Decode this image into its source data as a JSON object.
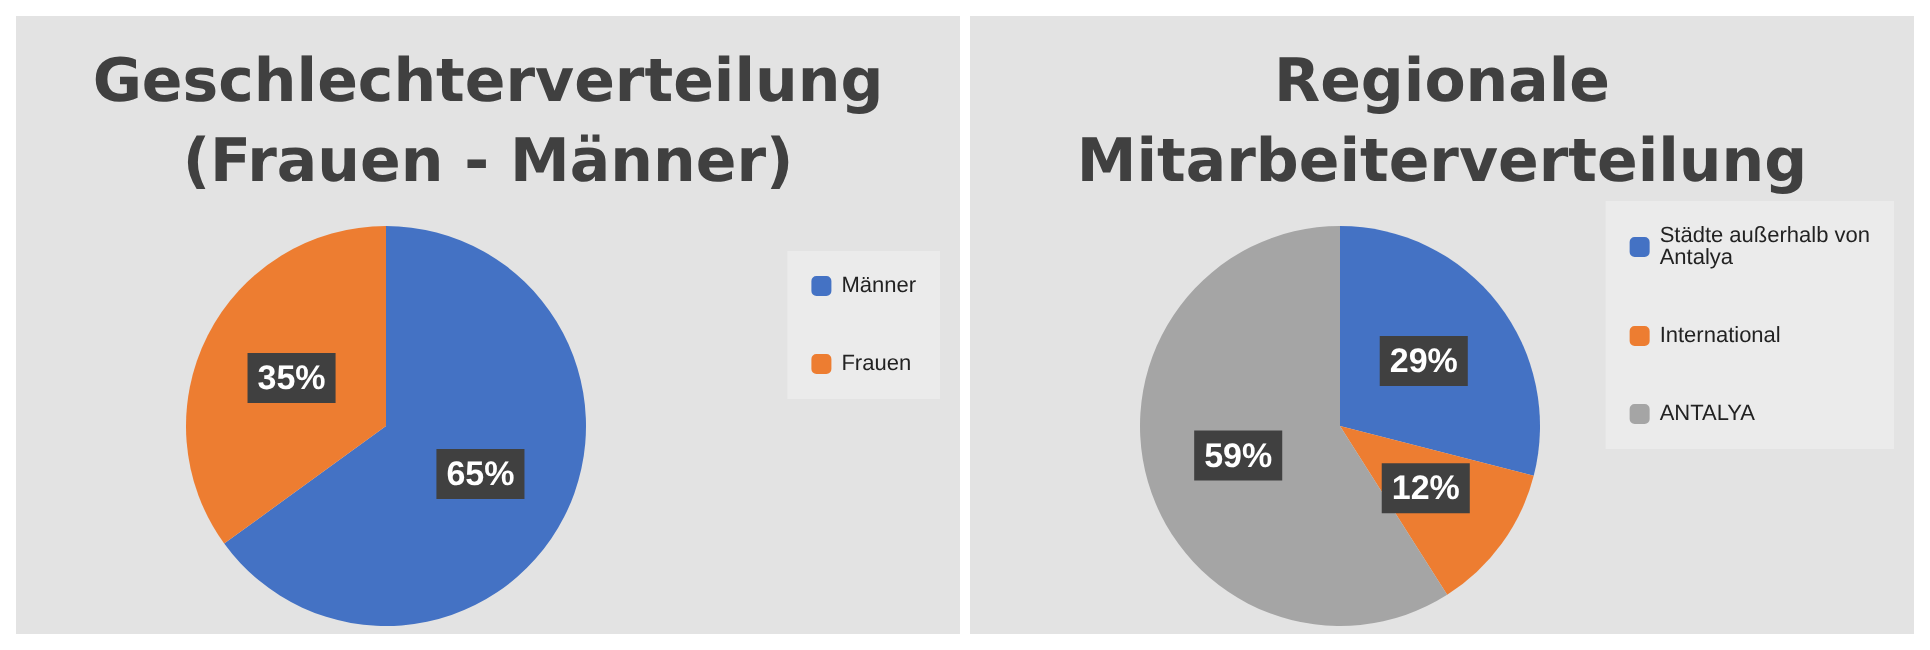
{
  "chart_data": [
    {
      "type": "pie",
      "title": "Geschlechterverteilung\n(Frauen - Männer)",
      "categories": [
        "Männer",
        "Frauen"
      ],
      "values": [
        65,
        35
      ],
      "colors": [
        "#4472c4",
        "#ed7d31"
      ],
      "value_labels": [
        "65%",
        "35%"
      ],
      "legend": "right"
    },
    {
      "type": "pie",
      "title": "Regionale\nMitarbeiterverteilung",
      "categories": [
        "Städte außerhalb von Antalya",
        "International",
        "ANTALYA"
      ],
      "values": [
        29,
        12,
        59
      ],
      "colors": [
        "#4472c4",
        "#ed7d31",
        "#a5a5a5"
      ],
      "value_labels": [
        "29%",
        "12%",
        "59%"
      ],
      "legend": "right"
    }
  ]
}
